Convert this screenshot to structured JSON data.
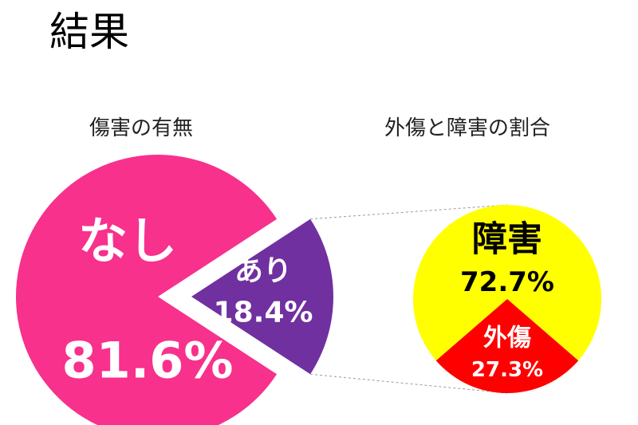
{
  "slide": {
    "title": "結果",
    "left_chart_title": "傷害の有無",
    "right_chart_title": "外傷と障害の割合"
  },
  "chart_data": [
    {
      "type": "pie",
      "title": "傷害の有無",
      "slices": [
        {
          "label": "なし",
          "value_label": "81.6%",
          "value": 81.6,
          "color": "#f7318c",
          "exploded": false
        },
        {
          "label": "あり",
          "value_label": "18.4%",
          "value": 18.4,
          "color": "#7030a0",
          "exploded": true
        }
      ]
    },
    {
      "type": "pie",
      "title": "外傷と障害の割合",
      "slices": [
        {
          "label": "障害",
          "value_label": "72.7%",
          "value": 72.7,
          "color": "#ffff00",
          "text_color": "#000000"
        },
        {
          "label": "外傷",
          "value_label": "27.3%",
          "value": 27.3,
          "color": "#ff0000",
          "text_color": "#ffffff"
        }
      ]
    }
  ]
}
